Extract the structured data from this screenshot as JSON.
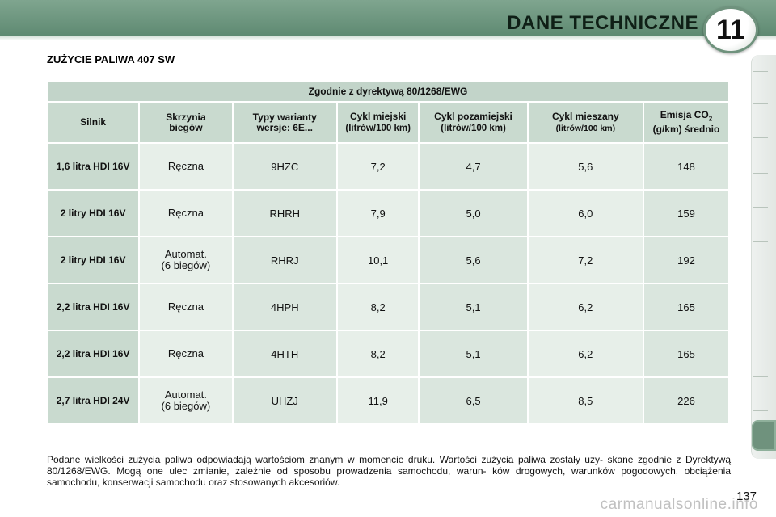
{
  "header": {
    "title": "DANE TECHNICZNE",
    "chapter_number": "11",
    "band_color": "#6f927d"
  },
  "section_title": "ZUŻYCIE PALIWA 407 SW",
  "table": {
    "caption": "Zgodnie z dyrektywą 80/1268/EWG",
    "headers": {
      "engine": "Silnik",
      "gearbox": "Skrzynia biegów",
      "variants": "Typy warianty wersje: 6E...",
      "urban": "Cykl miejski",
      "urban_unit": "(litrów/100 km)",
      "extra_urban": "Cykl pozamiejski",
      "extra_urban_unit": "(litrów/100 km)",
      "combined": "Cykl mieszany",
      "combined_unit": "(litrów/100 km)",
      "co2_label": "Emisja CO",
      "co2_sub": "2",
      "co2_unit": "(g/km) średnio"
    },
    "rows": [
      {
        "engine": "1,6 litra HDI 16V",
        "gearbox": "Ręczna",
        "gearbox_l2": "",
        "variant": "9HZC",
        "urban": "7,2",
        "extra_urban": "4,7",
        "combined": "5,6",
        "co2": "148"
      },
      {
        "engine": "2 litry HDI 16V",
        "gearbox": "Ręczna",
        "gearbox_l2": "",
        "variant": "RHRH",
        "urban": "7,9",
        "extra_urban": "5,0",
        "combined": "6,0",
        "co2": "159"
      },
      {
        "engine": "2 litry HDI 16V",
        "gearbox": "Automat.",
        "gearbox_l2": "(6 biegów)",
        "variant": "RHRJ",
        "urban": "10,1",
        "extra_urban": "5,6",
        "combined": "7,2",
        "co2": "192"
      },
      {
        "engine": "2,2 litra HDI 16V",
        "gearbox": "Ręczna",
        "gearbox_l2": "",
        "variant": "4HPH",
        "urban": "8,2",
        "extra_urban": "5,1",
        "combined": "6,2",
        "co2": "165"
      },
      {
        "engine": "2,2 litra HDI 16V",
        "gearbox": "Ręczna",
        "gearbox_l2": "",
        "variant": "4HTH",
        "urban": "8,2",
        "extra_urban": "5,1",
        "combined": "6,2",
        "co2": "165"
      },
      {
        "engine": "2,7 litra HDI 24V",
        "gearbox": "Automat.",
        "gearbox_l2": "(6 biegów)",
        "variant": "UHZJ",
        "urban": "11,9",
        "extra_urban": "6,5",
        "combined": "8,5",
        "co2": "226"
      }
    ]
  },
  "footnote": "Podane wielkości zużycia paliwa odpowiadają wartościom znanym w momencie druku. Wartości zużycia paliwa zostały uzy- skane zgodnie z Dyrektywą 80/1268/EWG. Mogą one ulec zmianie, zależnie od sposobu prowadzenia samochodu, warun- ków drogowych, warunków pogodowych, obciążenia samochodu, konserwacji samochodu oraz stosowanych akcesoriów.",
  "page_number": "137",
  "watermark": "carmanualsonline.info"
}
